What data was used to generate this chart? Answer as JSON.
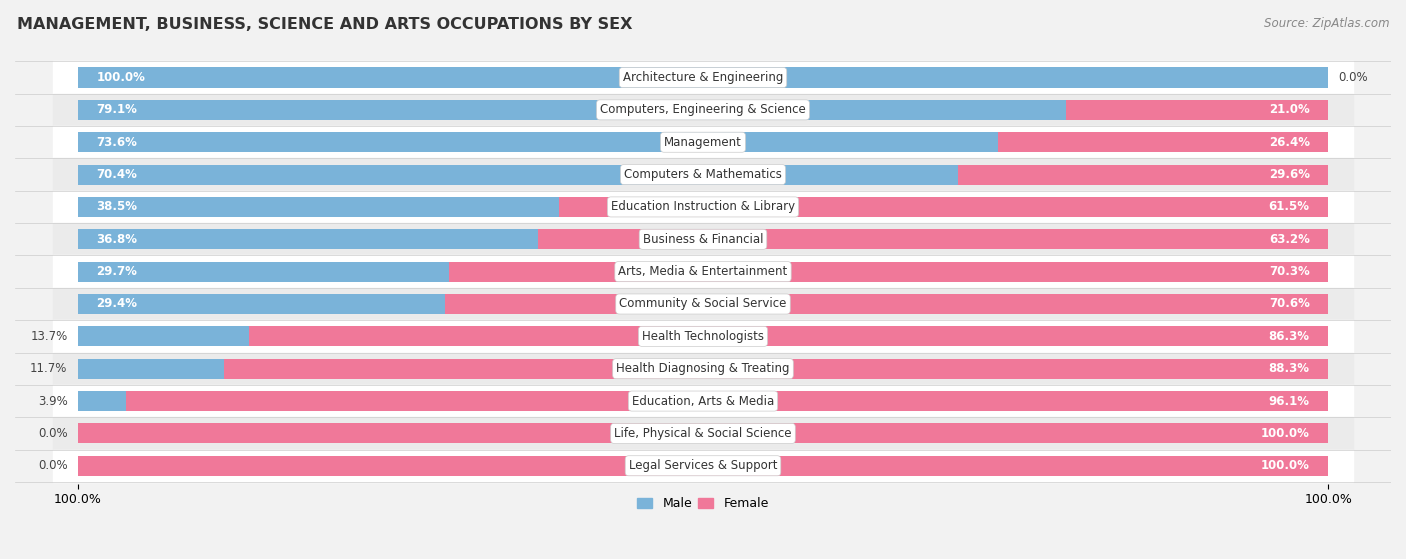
{
  "title": "MANAGEMENT, BUSINESS, SCIENCE AND ARTS OCCUPATIONS BY SEX",
  "source": "Source: ZipAtlas.com",
  "categories": [
    "Architecture & Engineering",
    "Computers, Engineering & Science",
    "Management",
    "Computers & Mathematics",
    "Education Instruction & Library",
    "Business & Financial",
    "Arts, Media & Entertainment",
    "Community & Social Service",
    "Health Technologists",
    "Health Diagnosing & Treating",
    "Education, Arts & Media",
    "Life, Physical & Social Science",
    "Legal Services & Support"
  ],
  "male": [
    100.0,
    79.1,
    73.6,
    70.4,
    38.5,
    36.8,
    29.7,
    29.4,
    13.7,
    11.7,
    3.9,
    0.0,
    0.0
  ],
  "female": [
    0.0,
    21.0,
    26.4,
    29.6,
    61.5,
    63.2,
    70.3,
    70.6,
    86.3,
    88.3,
    96.1,
    100.0,
    100.0
  ],
  "male_color": "#7ab3d9",
  "female_color": "#f07899",
  "bg_color": "#f2f2f2",
  "row_even_color": "#ffffff",
  "row_odd_color": "#ebebeb",
  "title_fontsize": 11.5,
  "bar_label_fontsize": 8.5,
  "cat_label_fontsize": 8.5,
  "source_fontsize": 8.5,
  "legend_fontsize": 9
}
